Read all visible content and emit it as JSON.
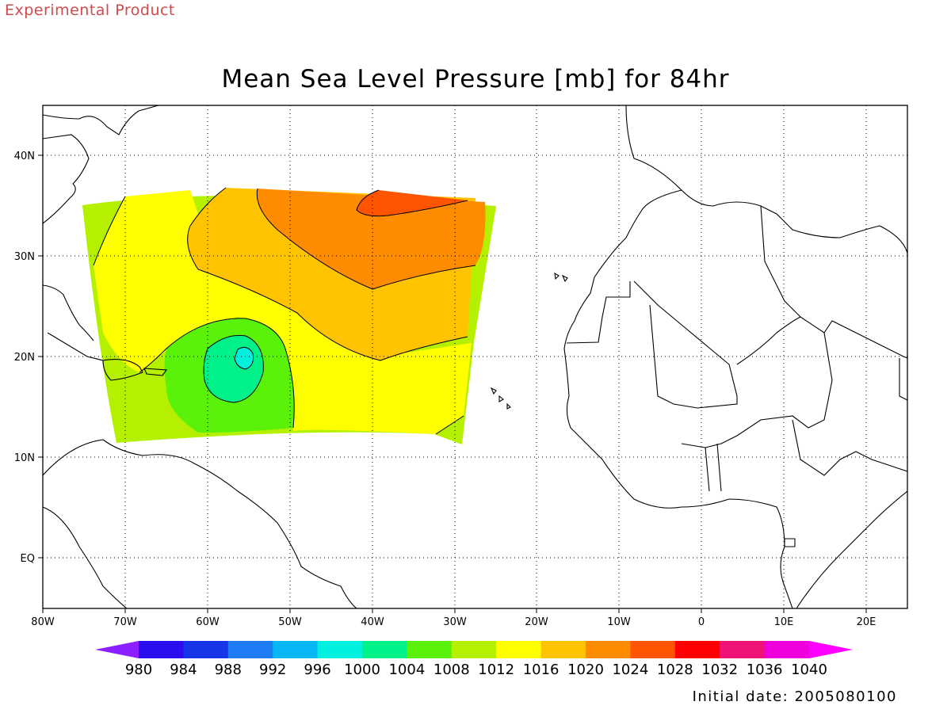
{
  "header": {
    "badge": "Experimental Product"
  },
  "title": "Mean Sea Level Pressure [mb] for 84hr",
  "footer": {
    "initial_date": "Initial date: 2005080100"
  },
  "axes": {
    "x_ticks": [
      "80W",
      "70W",
      "60W",
      "50W",
      "40W",
      "30W",
      "20W",
      "10W",
      "0",
      "10E",
      "20E"
    ],
    "y_ticks": [
      "40N",
      "30N",
      "20N",
      "10N",
      "EQ"
    ]
  },
  "colorbar": {
    "labels": [
      "980",
      "984",
      "988",
      "992",
      "996",
      "1000",
      "1004",
      "1008",
      "1012",
      "1016",
      "1020",
      "1024",
      "1028",
      "1032",
      "1036",
      "1040"
    ],
    "colors": [
      "#8c1eff",
      "#2a0ef0",
      "#1736e8",
      "#1e7cf5",
      "#05b8f5",
      "#00f0e0",
      "#00f08a",
      "#5bf20a",
      "#b4f000",
      "#ffff00",
      "#ffc300",
      "#ff8c00",
      "#ff5500",
      "#ff0000",
      "#f01478",
      "#f000dc",
      "#ff00ff"
    ]
  },
  "chart_data": {
    "type": "contour map",
    "variable": "Mean Sea Level Pressure [mb]",
    "forecast_hour": 84,
    "fields": [
      {
        "band": "1008-1012",
        "color": "#b4f000"
      },
      {
        "band": "1012-1016",
        "color": "#ffff00"
      },
      {
        "band": "1016-1020",
        "color": "#ffc300"
      },
      {
        "band": "1020-1024",
        "color": "#ff8c00"
      },
      {
        "band": "1024-1028",
        "color": "#ff5500"
      },
      {
        "band": "1004-1008",
        "color": "#5bf20a"
      },
      {
        "band": "1000-1004",
        "color": "#00f08a"
      },
      {
        "band": "996-1000",
        "color": "#00f0e0"
      }
    ]
  }
}
